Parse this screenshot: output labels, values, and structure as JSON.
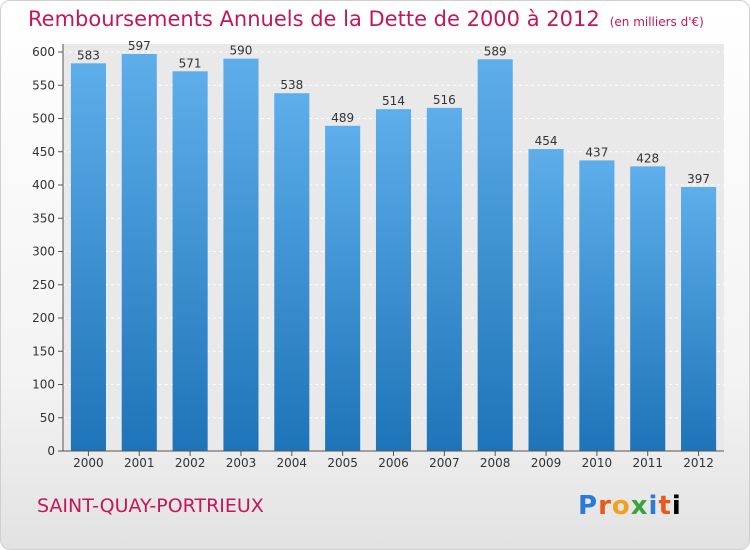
{
  "title": "Remboursements Annuels de la Dette de 2000 à 2012",
  "unit": "(en milliers d'€)",
  "city": "SAINT-QUAY-PORTRIEUX",
  "logo": "Proxiti",
  "colors": {
    "bar_top": "#5daeea",
    "bar_bottom": "#1e74b8",
    "title": "#c2185b"
  },
  "chart_data": {
    "type": "bar",
    "categories": [
      "2000",
      "2001",
      "2002",
      "2003",
      "2004",
      "2005",
      "2006",
      "2007",
      "2008",
      "2009",
      "2010",
      "2011",
      "2012"
    ],
    "values": [
      583,
      597,
      571,
      590,
      538,
      489,
      514,
      516,
      589,
      454,
      437,
      428,
      397
    ],
    "ylim": [
      0,
      600
    ],
    "yticks": [
      0,
      50,
      100,
      150,
      200,
      250,
      300,
      350,
      400,
      450,
      500,
      550,
      600
    ],
    "grid": true
  }
}
